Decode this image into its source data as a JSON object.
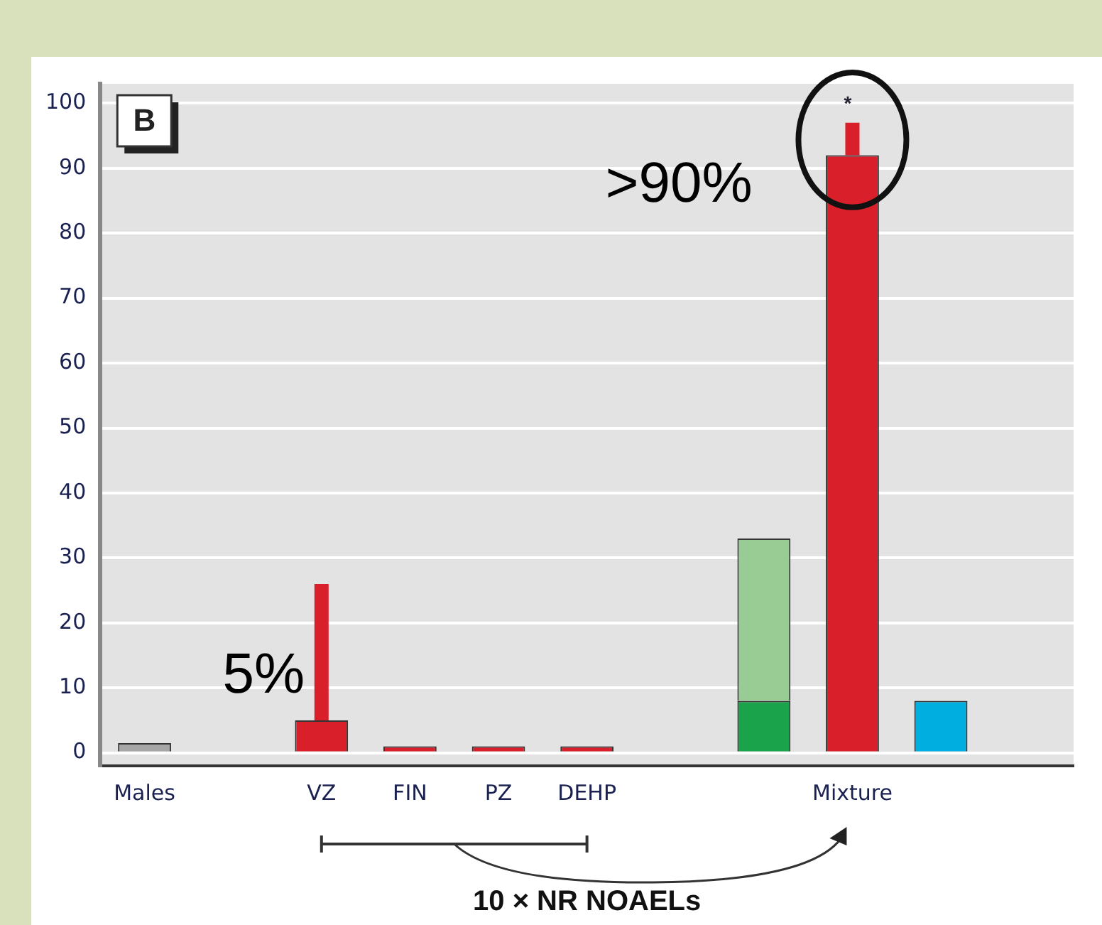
{
  "chart_data": {
    "type": "bar",
    "xlabel": "10 × NR NOAELs",
    "categories": [
      "Males",
      null,
      "VZ",
      "FIN",
      "PZ",
      "DEHP",
      null,
      null,
      "Mixture",
      null,
      null
    ],
    "series": [
      {
        "color": "#a6a6a6",
        "values": [
          1.5,
          null,
          null,
          null,
          null,
          null,
          null,
          null,
          null,
          null,
          null
        ]
      },
      {
        "color": "#d9202a",
        "values": [
          null,
          null,
          5,
          1,
          1,
          1,
          null,
          null,
          92,
          null,
          null
        ],
        "errors": [
          null,
          null,
          [
            5,
            26
          ],
          null,
          null,
          null,
          null,
          null,
          [
            92,
            97
          ],
          null,
          null
        ]
      },
      {
        "color": "#1aa34a",
        "values": [
          null,
          null,
          null,
          null,
          null,
          null,
          null,
          8,
          null,
          null,
          null
        ]
      },
      {
        "color": "#99cc95",
        "values": [
          null,
          null,
          null,
          null,
          null,
          null,
          null,
          25,
          null,
          null,
          null
        ]
      },
      {
        "color": "#00aedf",
        "values": [
          null,
          null,
          null,
          null,
          null,
          null,
          null,
          null,
          null,
          8,
          null
        ]
      }
    ],
    "stacked": true,
    "ylim": [
      -2,
      103
    ],
    "yticks": [
      0,
      10,
      20,
      30,
      40,
      50,
      60,
      70,
      80,
      90,
      100
    ],
    "grid": "y",
    "legend": false,
    "annotations": [
      "B",
      "5%",
      ">90%",
      "*"
    ]
  }
}
